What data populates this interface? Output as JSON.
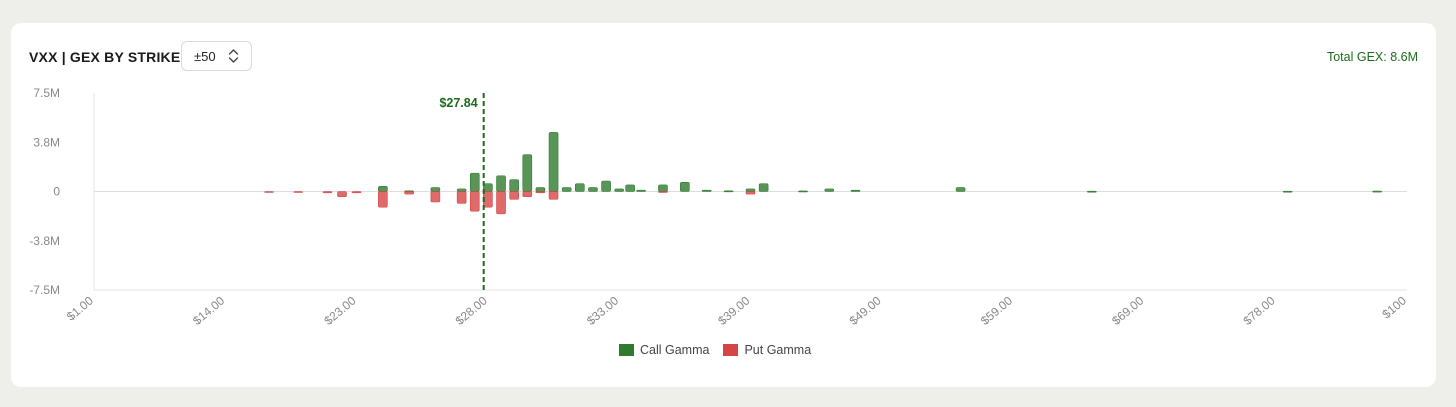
{
  "header": {
    "title": "VXX | GEX BY STRIKE",
    "range_value": "±50",
    "total_label": "Total GEX:",
    "total_value": "8.6M"
  },
  "colors": {
    "call": "#2f7a2f",
    "put": "#d64545",
    "spot_line": "#1e6b1e",
    "axis_text": "#888888"
  },
  "chart_data": {
    "type": "bar",
    "title": "VXX | GEX BY STRIKE",
    "xlabel": "",
    "ylabel": "",
    "ylim": [
      -7.5,
      7.5
    ],
    "y_unit": "M",
    "y_ticks": [
      "7.5M",
      "3.8M",
      "0",
      "-3.8M",
      "-7.5M"
    ],
    "y_tick_values": [
      7.5,
      3.75,
      0,
      -3.75,
      -7.5
    ],
    "x_ticks": [
      "$1.00",
      "$14.00",
      "$23.00",
      "$28.00",
      "$33.00",
      "$39.00",
      "$49.00",
      "$59.00",
      "$69.00",
      "$78.00",
      "$100"
    ],
    "x_range": [
      1,
      100
    ],
    "spot": {
      "label": "$27.84",
      "x": 27.84
    },
    "legend": [
      "Call Gamma",
      "Put Gamma"
    ],
    "series": [
      {
        "name": "Call Gamma",
        "x": [
          24,
          25,
          26,
          27,
          27.5,
          28,
          28.5,
          29,
          29.5,
          30,
          30.5,
          31,
          31.5,
          32,
          32.5,
          33,
          33.5,
          34,
          35,
          36,
          37,
          38,
          39,
          40,
          43,
          45,
          47,
          55,
          65,
          80,
          95
        ],
        "values": [
          0.4,
          0.05,
          0.3,
          0.2,
          1.4,
          0.6,
          1.2,
          0.9,
          2.8,
          0.3,
          4.5,
          0.3,
          0.6,
          0.3,
          0.8,
          0.2,
          0.5,
          0.1,
          0.5,
          0.7,
          0.1,
          0.05,
          0.2,
          0.6,
          0.04,
          0.2,
          0.1,
          0.3,
          0.02,
          0.02,
          0.03
        ]
      },
      {
        "name": "Put Gamma",
        "x": [
          17,
          19,
          21,
          22,
          23,
          24,
          25,
          26,
          27,
          27.5,
          28,
          28.5,
          29,
          29.5,
          30,
          30.5,
          35,
          39
        ],
        "values": [
          -0.05,
          -0.05,
          -0.1,
          -0.4,
          -0.1,
          -1.2,
          -0.2,
          -0.8,
          -0.9,
          -1.5,
          -1.2,
          -1.7,
          -0.6,
          -0.4,
          -0.1,
          -0.6,
          -0.05,
          -0.2
        ]
      }
    ]
  }
}
